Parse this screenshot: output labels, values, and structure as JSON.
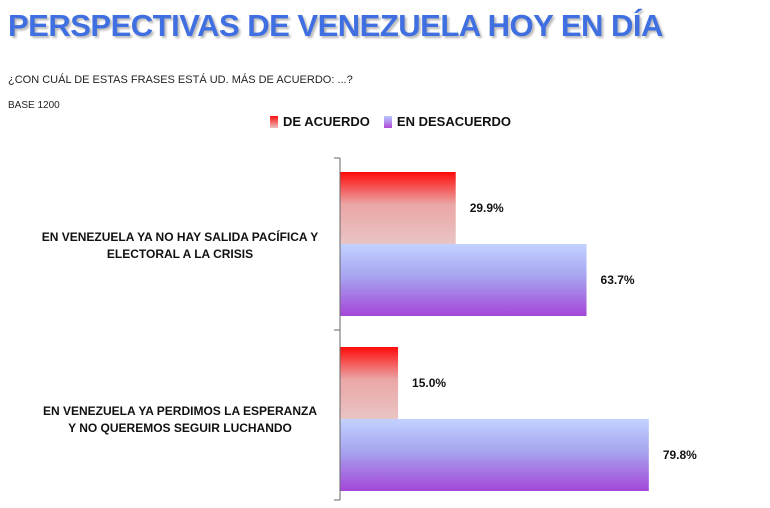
{
  "title": "PERSPECTIVAS DE VENEZUELA HOY EN DÍA",
  "question": "¿CON CUÁL DE ESTAS FRASES ESTÁ UD. MÁS DE ACUERDO: ...?",
  "base": "BASE 1200",
  "chart_data": {
    "type": "bar",
    "orientation": "horizontal",
    "categories": [
      "EN VENEZUELA YA NO HAY SALIDA PACÍFICA Y ELECTORAL A LA CRISIS",
      "EN VENEZUELA YA PERDIMOS LA ESPERANZA Y NO QUEREMOS SEGUIR LUCHANDO"
    ],
    "category_lines": [
      [
        "EN VENEZUELA YA NO HAY SALIDA PACÍFICA Y",
        "ELECTORAL A LA CRISIS"
      ],
      [
        "EN VENEZUELA YA PERDIMOS LA ESPERANZA",
        "Y NO QUEREMOS SEGUIR LUCHANDO"
      ]
    ],
    "series": [
      {
        "name": "DE ACUERDO",
        "values": [
          29.9,
          15.0
        ],
        "labels": [
          "29.9%",
          "15.0%"
        ],
        "color": "#ff1010"
      },
      {
        "name": "EN DESACUERDO",
        "values": [
          63.7,
          79.8
        ],
        "labels": [
          "63.7%",
          "79.8%"
        ],
        "color": "#a64fd8"
      }
    ],
    "xlim": [
      0,
      100
    ],
    "grid": false,
    "legend_position": "top"
  }
}
